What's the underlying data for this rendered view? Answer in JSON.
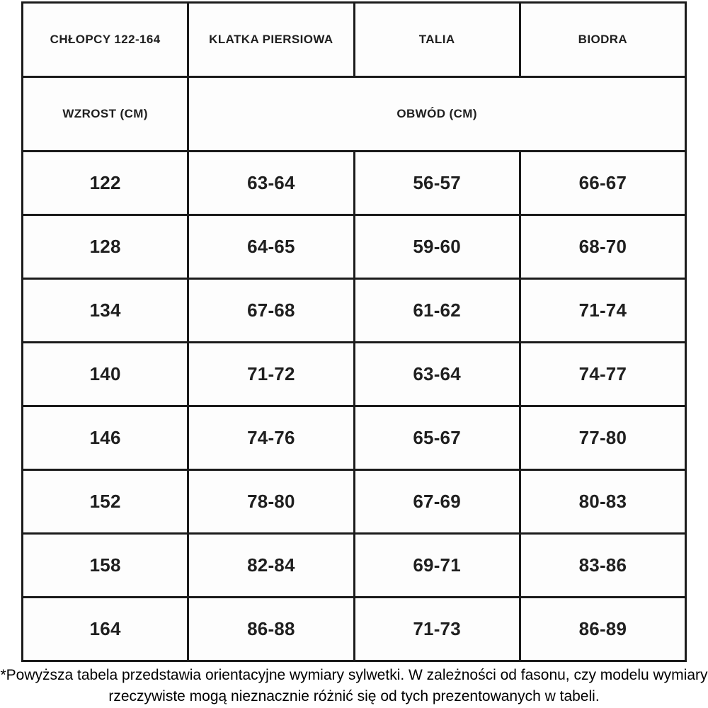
{
  "table": {
    "header": [
      "CHŁOPCY 122-164",
      "KLATKA PIERSIOWA",
      "TALIA",
      "BIODRA"
    ],
    "subheader": {
      "height_label": "WZROST (CM)",
      "circumference_label": "OBWÓD (CM)"
    },
    "rows": [
      [
        "122",
        "63-64",
        "56-57",
        "66-67"
      ],
      [
        "128",
        "64-65",
        "59-60",
        "68-70"
      ],
      [
        "134",
        "67-68",
        "61-62",
        "71-74"
      ],
      [
        "140",
        "71-72",
        "63-64",
        "74-77"
      ],
      [
        "146",
        "74-76",
        "65-67",
        "77-80"
      ],
      [
        "152",
        "78-80",
        "67-69",
        "80-83"
      ],
      [
        "158",
        "82-84",
        "69-71",
        "83-86"
      ],
      [
        "164",
        "86-88",
        "71-73",
        "86-89"
      ]
    ]
  },
  "footnote": "*Powyższa tabela przedstawia orientacyjne wymiary sylwetki. W zależności od fasonu, czy modelu wymiary rzeczywiste mogą nieznacznie różnić się od tych prezentowanych w tabeli.",
  "colors": {
    "border": "#1b1b1b",
    "table_text": "#1f1f1f",
    "footnote_text": "#000000",
    "background": "#ffffff"
  }
}
